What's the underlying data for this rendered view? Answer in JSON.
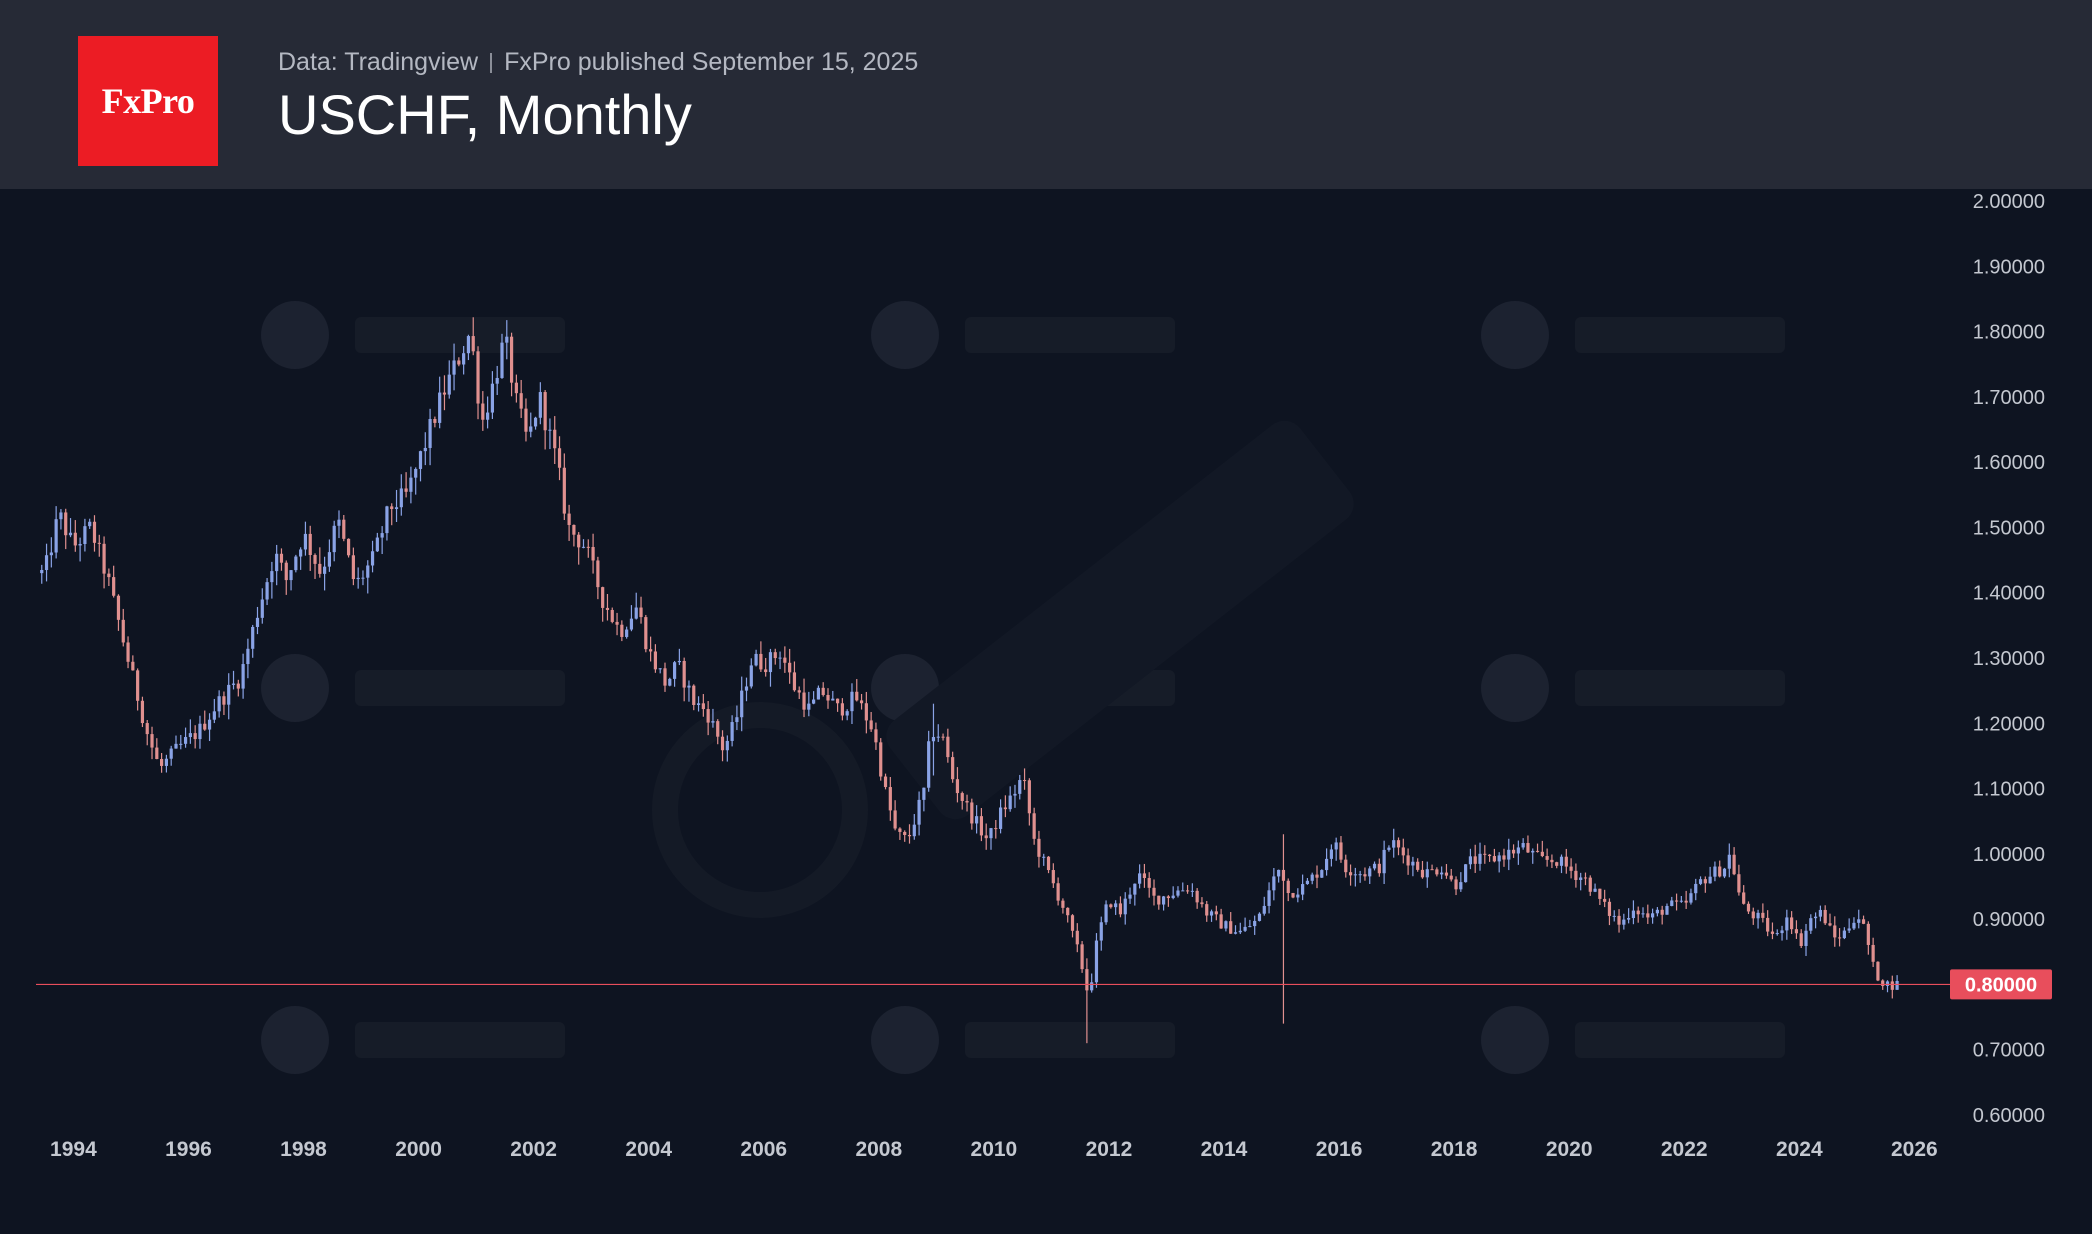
{
  "header": {
    "logo_text": "FxPro",
    "source": "Data: Tradingview",
    "published": "FxPro published September 15, 2025",
    "title": "USCHF, Monthly"
  },
  "colors": {
    "header_bg": "#262a36",
    "chart_bg": "#0e1421",
    "logo_bg": "#ec1c24",
    "up_candle": "#8aa3e6",
    "down_candle": "#e0908f",
    "price_line": "#e84e5c"
  },
  "chart_data": {
    "type": "candlestick",
    "symbol": "USCHF",
    "interval": "Monthly",
    "x_ticks": [
      "1994",
      "1996",
      "1998",
      "2000",
      "2002",
      "2004",
      "2006",
      "2008",
      "2010",
      "2012",
      "2014",
      "2016",
      "2018",
      "2020",
      "2022",
      "2024",
      "2026"
    ],
    "y_ticks": [
      "0.60000",
      "0.70000",
      "0.80000",
      "0.90000",
      "1.00000",
      "1.10000",
      "1.20000",
      "1.30000",
      "1.40000",
      "1.50000",
      "1.60000",
      "1.70000",
      "1.80000",
      "1.90000",
      "2.00000"
    ],
    "xlim": [
      1993.35,
      2026.55
    ],
    "ylim": [
      0.6,
      2.0
    ],
    "current_price": 0.8,
    "current_price_label": "0.80000",
    "anchors": [
      [
        1993.5,
        1.43
      ],
      [
        1993.75,
        1.52
      ],
      [
        1994.0,
        1.47
      ],
      [
        1994.3,
        1.5
      ],
      [
        1994.6,
        1.42
      ],
      [
        1995.0,
        1.28
      ],
      [
        1995.3,
        1.18
      ],
      [
        1995.5,
        1.13
      ],
      [
        1995.8,
        1.16
      ],
      [
        1996.2,
        1.19
      ],
      [
        1996.5,
        1.23
      ],
      [
        1996.9,
        1.27
      ],
      [
        1997.2,
        1.37
      ],
      [
        1997.5,
        1.46
      ],
      [
        1997.7,
        1.42
      ],
      [
        1998.0,
        1.49
      ],
      [
        1998.3,
        1.43
      ],
      [
        1998.6,
        1.51
      ],
      [
        1998.9,
        1.41
      ],
      [
        1999.2,
        1.45
      ],
      [
        1999.5,
        1.53
      ],
      [
        1999.8,
        1.55
      ],
      [
        2000.2,
        1.65
      ],
      [
        2000.4,
        1.7
      ],
      [
        2000.7,
        1.76
      ],
      [
        2000.9,
        1.8
      ],
      [
        2001.1,
        1.66
      ],
      [
        2001.3,
        1.72
      ],
      [
        2001.5,
        1.79
      ],
      [
        2001.7,
        1.69
      ],
      [
        2001.9,
        1.63
      ],
      [
        2002.1,
        1.7
      ],
      [
        2002.4,
        1.6
      ],
      [
        2002.6,
        1.5
      ],
      [
        2002.9,
        1.47
      ],
      [
        2003.2,
        1.39
      ],
      [
        2003.5,
        1.34
      ],
      [
        2003.8,
        1.38
      ],
      [
        2004.0,
        1.31
      ],
      [
        2004.3,
        1.26
      ],
      [
        2004.5,
        1.29
      ],
      [
        2004.8,
        1.23
      ],
      [
        2005.0,
        1.22
      ],
      [
        2005.3,
        1.16
      ],
      [
        2005.5,
        1.2
      ],
      [
        2005.8,
        1.3
      ],
      [
        2006.0,
        1.29
      ],
      [
        2006.3,
        1.31
      ],
      [
        2006.5,
        1.26
      ],
      [
        2006.8,
        1.22
      ],
      [
        2007.0,
        1.25
      ],
      [
        2007.3,
        1.22
      ],
      [
        2007.6,
        1.24
      ],
      [
        2007.9,
        1.19
      ],
      [
        2008.1,
        1.1
      ],
      [
        2008.3,
        1.03
      ],
      [
        2008.5,
        1.02
      ],
      [
        2008.8,
        1.1
      ],
      [
        2008.9,
        1.19
      ],
      [
        2009.1,
        1.18
      ],
      [
        2009.3,
        1.11
      ],
      [
        2009.6,
        1.06
      ],
      [
        2009.9,
        1.02
      ],
      [
        2010.1,
        1.06
      ],
      [
        2010.4,
        1.1
      ],
      [
        2010.5,
        1.12
      ],
      [
        2010.7,
        1.02
      ],
      [
        2010.9,
        0.98
      ],
      [
        2011.2,
        0.92
      ],
      [
        2011.5,
        0.84
      ],
      [
        2011.65,
        0.78
      ],
      [
        2011.8,
        0.87
      ],
      [
        2012.0,
        0.93
      ],
      [
        2012.2,
        0.91
      ],
      [
        2012.5,
        0.97
      ],
      [
        2012.8,
        0.93
      ],
      [
        2013.1,
        0.94
      ],
      [
        2013.4,
        0.95
      ],
      [
        2013.7,
        0.91
      ],
      [
        2014.0,
        0.89
      ],
      [
        2014.3,
        0.88
      ],
      [
        2014.6,
        0.9
      ],
      [
        2014.9,
        0.97
      ],
      [
        2015.0,
        0.98
      ],
      [
        2015.1,
        0.94
      ],
      [
        2015.4,
        0.95
      ],
      [
        2015.7,
        0.98
      ],
      [
        2015.9,
        1.02
      ],
      [
        2016.1,
        0.98
      ],
      [
        2016.4,
        0.97
      ],
      [
        2016.7,
        0.98
      ],
      [
        2016.9,
        1.02
      ],
      [
        2017.1,
        1.0
      ],
      [
        2017.5,
        0.97
      ],
      [
        2017.8,
        0.98
      ],
      [
        2018.0,
        0.95
      ],
      [
        2018.3,
        0.99
      ],
      [
        2018.6,
        0.99
      ],
      [
        2018.9,
        1.0
      ],
      [
        2019.2,
        1.01
      ],
      [
        2019.5,
        0.99
      ],
      [
        2019.8,
        0.99
      ],
      [
        2020.1,
        0.97
      ],
      [
        2020.3,
        0.96
      ],
      [
        2020.6,
        0.92
      ],
      [
        2020.9,
        0.89
      ],
      [
        2021.1,
        0.92
      ],
      [
        2021.4,
        0.9
      ],
      [
        2021.7,
        0.92
      ],
      [
        2022.0,
        0.92
      ],
      [
        2022.3,
        0.96
      ],
      [
        2022.5,
        0.97
      ],
      [
        2022.7,
        0.98
      ],
      [
        2022.8,
        1.0
      ],
      [
        2023.0,
        0.92
      ],
      [
        2023.3,
        0.9
      ],
      [
        2023.6,
        0.87
      ],
      [
        2023.8,
        0.91
      ],
      [
        2024.0,
        0.86
      ],
      [
        2024.2,
        0.9
      ],
      [
        2024.4,
        0.91
      ],
      [
        2024.6,
        0.87
      ],
      [
        2024.8,
        0.88
      ],
      [
        2025.0,
        0.91
      ],
      [
        2025.15,
        0.88
      ],
      [
        2025.3,
        0.82
      ],
      [
        2025.5,
        0.8
      ],
      [
        2025.7,
        0.8
      ]
    ],
    "spikes": [
      {
        "t": 2015.04,
        "high": 1.03,
        "low": 0.74
      },
      {
        "t": 2011.65,
        "high": 0.84,
        "low": 0.71
      },
      {
        "t": 2008.95,
        "high": 1.23,
        "low": 1.12
      }
    ]
  }
}
